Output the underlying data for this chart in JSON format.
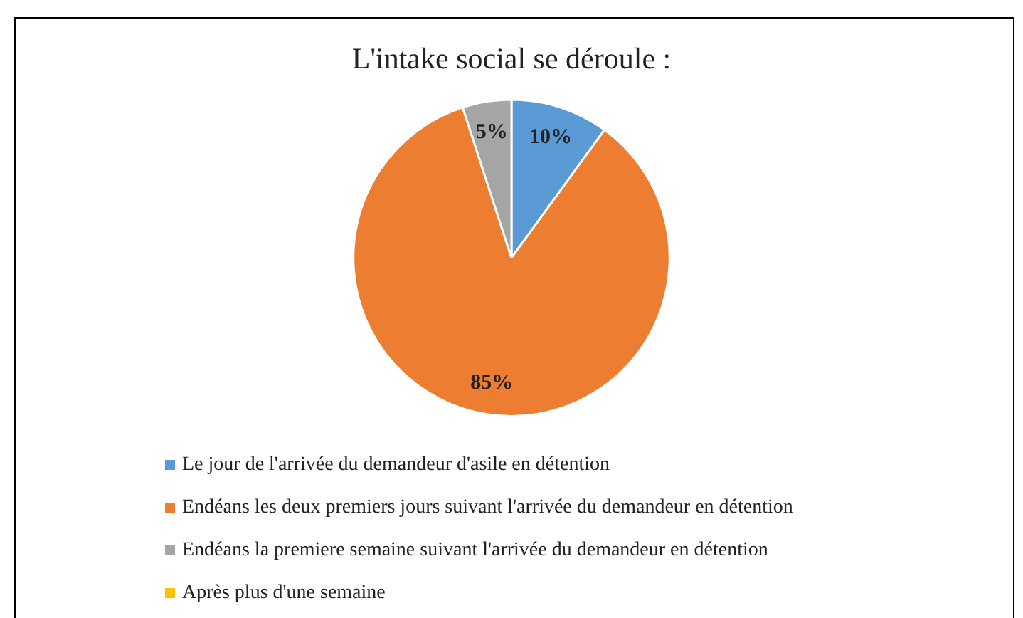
{
  "chart_data": {
    "type": "pie",
    "title": "L'intake social se déroule :",
    "categories": [
      "Le jour de l'arrivée du demandeur d'asile en détention",
      "Endéans les deux premiers jours suivant l'arrivée du demandeur en détention",
      "Endéans la premiere semaine suivant l'arrivée du demandeur en détention",
      "Après plus d'une semaine"
    ],
    "values": [
      10,
      85,
      5,
      0
    ],
    "colors": [
      "#5b9bd5",
      "#ed7d31",
      "#a5a5a5",
      "#ffc000"
    ],
    "value_labels": [
      "10%",
      "85%",
      "5%",
      null
    ],
    "legend": "bottom"
  }
}
